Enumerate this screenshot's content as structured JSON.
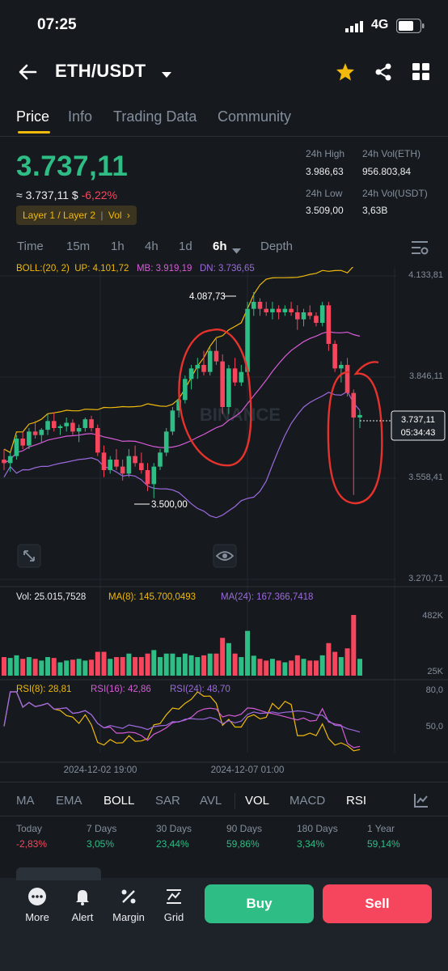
{
  "status_bar": {
    "time": "07:25",
    "network": "4G"
  },
  "header": {
    "pair": "ETH/USDT"
  },
  "tabs": [
    "Price",
    "Info",
    "Trading Data",
    "Community"
  ],
  "price": {
    "last": "3.737,11",
    "approx_prefix": "≈ 3.737,11 $",
    "change": "-6,22%",
    "tags": "Layer 1 / Layer 2",
    "tag_vol": "Vol",
    "stats": {
      "high_label": "24h High",
      "high_value": "3.986,63",
      "vol_eth_label": "24h Vol(ETH)",
      "vol_eth_value": "956.803,84",
      "low_label": "24h Low",
      "low_value": "3.509,00",
      "vol_usdt_label": "24h Vol(USDT)",
      "vol_usdt_value": "3,63B"
    }
  },
  "timeframes": [
    "Time",
    "15m",
    "1h",
    "4h",
    "1d",
    "6h",
    "Depth"
  ],
  "boll_legend": {
    "name": "BOLL:(20, 2)",
    "up": "UP: 4.101,72",
    "mb": "MB: 3.919,19",
    "dn": "DN: 3.736,65"
  },
  "colors": {
    "up": "#2ebd85",
    "down": "#f6465d",
    "accent": "#f0b90b",
    "bg": "#161a1e",
    "boll_up": "#f0b90b",
    "boll_mb": "#d65bd6",
    "boll_dn": "#9c6ade",
    "annotation": "#e5322c"
  },
  "chart_data": {
    "type": "candlestick",
    "interval": "6h",
    "y_ticks": [
      "4.133,81",
      "3.846,11",
      "3.558,41",
      "3.270,71"
    ],
    "ylim": [
      3270.71,
      4133.81
    ],
    "high_marker": "4.087,73",
    "low_marker": "3.500,00",
    "current_price": "3.737,11",
    "countdown": "05:34:43",
    "watermark": "BINANCE",
    "candles": [
      [
        3610,
        3640,
        3580,
        3600
      ],
      [
        3600,
        3630,
        3575,
        3620
      ],
      [
        3620,
        3680,
        3610,
        3670
      ],
      [
        3670,
        3690,
        3640,
        3650
      ],
      [
        3650,
        3700,
        3640,
        3690
      ],
      [
        3690,
        3720,
        3670,
        3680
      ],
      [
        3680,
        3700,
        3660,
        3695
      ],
      [
        3695,
        3740,
        3680,
        3720
      ],
      [
        3720,
        3745,
        3690,
        3700
      ],
      [
        3700,
        3710,
        3680,
        3705
      ],
      [
        3705,
        3730,
        3690,
        3715
      ],
      [
        3715,
        3725,
        3680,
        3690
      ],
      [
        3690,
        3710,
        3660,
        3700
      ],
      [
        3700,
        3730,
        3690,
        3725
      ],
      [
        3725,
        3735,
        3690,
        3700
      ],
      [
        3700,
        3710,
        3620,
        3630
      ],
      [
        3630,
        3650,
        3560,
        3580
      ],
      [
        3580,
        3620,
        3570,
        3610
      ],
      [
        3610,
        3640,
        3580,
        3590
      ],
      [
        3590,
        3610,
        3550,
        3570
      ],
      [
        3570,
        3640,
        3560,
        3620
      ],
      [
        3620,
        3650,
        3590,
        3600
      ],
      [
        3600,
        3630,
        3570,
        3580
      ],
      [
        3580,
        3600,
        3520,
        3540
      ],
      [
        3540,
        3600,
        3500,
        3590
      ],
      [
        3590,
        3640,
        3580,
        3630
      ],
      [
        3630,
        3700,
        3620,
        3690
      ],
      [
        3690,
        3760,
        3680,
        3750
      ],
      [
        3750,
        3790,
        3730,
        3780
      ],
      [
        3780,
        3850,
        3770,
        3840
      ],
      [
        3840,
        3880,
        3810,
        3870
      ],
      [
        3870,
        3900,
        3840,
        3880
      ],
      [
        3880,
        3920,
        3850,
        3860
      ],
      [
        3860,
        3930,
        3850,
        3920
      ],
      [
        3920,
        3960,
        3880,
        3890
      ],
      [
        3890,
        3910,
        3740,
        3760
      ],
      [
        3760,
        3880,
        3740,
        3870
      ],
      [
        3870,
        3900,
        3820,
        3830
      ],
      [
        3830,
        3880,
        3820,
        3860
      ],
      [
        3860,
        4060,
        3850,
        4040
      ],
      [
        4040,
        4087.73,
        4020,
        4060
      ],
      [
        4060,
        4070,
        4020,
        4040
      ],
      [
        4040,
        4060,
        4020,
        4030
      ],
      [
        4030,
        4060,
        4010,
        4040
      ],
      [
        4040,
        4050,
        4010,
        4030
      ],
      [
        4030,
        4050,
        4020,
        4040
      ],
      [
        4040,
        4060,
        4020,
        4030
      ],
      [
        4030,
        4050,
        3980,
        4010
      ],
      [
        4010,
        4040,
        3990,
        4030
      ],
      [
        4030,
        4050,
        4010,
        4020
      ],
      [
        4020,
        4030,
        3990,
        4000
      ],
      [
        4000,
        4060,
        3990,
        4050
      ],
      [
        4050,
        4060,
        3920,
        3940
      ],
      [
        3940,
        3950,
        3860,
        3870
      ],
      [
        3870,
        3890,
        3830,
        3880
      ],
      [
        3880,
        3900,
        3790,
        3800
      ],
      [
        3800,
        3810,
        3509,
        3730
      ],
      [
        3730,
        3750,
        3700,
        3737.11
      ]
    ],
    "volume": {
      "legend": {
        "vol": "Vol: 25.015,7528",
        "ma8": "MA(8): 145.700,0493",
        "ma24": "MA(24): 167.366,7418"
      },
      "y_ticks": [
        "482K",
        "25K"
      ]
    },
    "rsi": {
      "legend": {
        "rsi8": "RSI(8): 28,81",
        "rsi16": "RSI(16): 42,86",
        "rsi24": "RSI(24): 48,70"
      },
      "y_ticks": [
        "80,0",
        "50,0"
      ]
    },
    "x_ticks": [
      "2024-12-02 19:00",
      "2024-12-07 01:00"
    ]
  },
  "indicators": [
    "MA",
    "EMA",
    "BOLL",
    "SAR",
    "AVL",
    "VOL",
    "MACD",
    "RSI"
  ],
  "performance": [
    {
      "label": "Today",
      "value": "-2,83%"
    },
    {
      "label": "7 Days",
      "value": "3,05%"
    },
    {
      "label": "30 Days",
      "value": "23,44%"
    },
    {
      "label": "90 Days",
      "value": "59,86%"
    },
    {
      "label": "180 Days",
      "value": "3,34%"
    },
    {
      "label": "1 Year",
      "value": "59,14%"
    }
  ],
  "actions": {
    "more": "More",
    "alert": "Alert",
    "margin": "Margin",
    "grid": "Grid",
    "buy": "Buy",
    "sell": "Sell"
  }
}
